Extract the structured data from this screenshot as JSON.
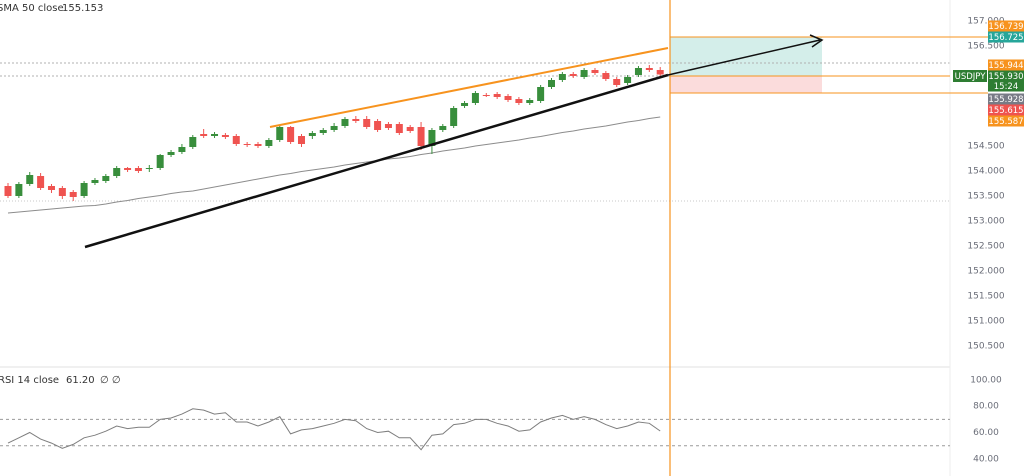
{
  "chart_data": [
    {
      "type": "candlestick",
      "open": [
        153.7,
        153.5,
        153.74,
        153.9,
        153.7,
        153.66,
        153.58,
        153.5,
        153.76,
        153.8,
        153.9,
        154.06,
        154.06,
        154.04,
        154.06,
        154.32,
        154.38,
        154.48,
        154.74,
        154.7,
        154.72,
        154.7,
        154.54,
        154.54,
        154.5,
        154.62,
        154.88,
        154.7,
        154.7,
        154.76,
        154.82,
        154.9,
        155.04,
        155.04,
        155.0,
        154.94,
        154.94,
        154.88,
        154.88,
        154.5,
        154.82,
        154.9,
        155.3,
        155.36,
        155.52,
        155.54,
        155.5,
        155.44,
        155.36,
        155.4,
        155.68,
        155.82,
        155.94,
        155.88,
        156.02,
        155.96,
        155.84,
        155.76,
        155.92,
        156.06,
        156.02
      ],
      "high": [
        153.76,
        153.78,
        153.98,
        153.96,
        153.74,
        153.7,
        153.62,
        153.8,
        153.86,
        153.94,
        154.1,
        154.08,
        154.1,
        154.12,
        154.34,
        154.42,
        154.54,
        154.72,
        154.84,
        154.78,
        154.76,
        154.74,
        154.58,
        154.58,
        154.66,
        154.92,
        154.9,
        154.74,
        154.8,
        154.86,
        154.96,
        155.08,
        155.1,
        155.1,
        155.04,
        154.98,
        154.98,
        154.92,
        154.98,
        154.86,
        154.94,
        155.3,
        155.4,
        155.6,
        155.56,
        155.58,
        155.54,
        155.48,
        155.46,
        155.72,
        155.86,
        155.98,
        155.98,
        156.06,
        156.06,
        156.0,
        155.88,
        155.92,
        156.1,
        156.12,
        156.08
      ],
      "low": [
        153.46,
        153.46,
        153.7,
        153.62,
        153.56,
        153.44,
        153.4,
        153.46,
        153.72,
        153.76,
        153.86,
        153.98,
        153.96,
        153.98,
        154.02,
        154.28,
        154.34,
        154.44,
        154.66,
        154.66,
        154.64,
        154.5,
        154.48,
        154.46,
        154.46,
        154.58,
        154.54,
        154.48,
        154.64,
        154.72,
        154.78,
        154.86,
        154.96,
        154.84,
        154.78,
        154.82,
        154.72,
        154.76,
        154.42,
        154.34,
        154.78,
        154.86,
        155.26,
        155.32,
        155.48,
        155.44,
        155.38,
        155.32,
        155.32,
        155.36,
        155.64,
        155.78,
        155.86,
        155.84,
        155.92,
        155.8,
        155.68,
        155.72,
        155.88,
        155.98,
        155.86
      ],
      "close": [
        153.5,
        153.74,
        153.92,
        153.66,
        153.62,
        153.5,
        153.48,
        153.76,
        153.82,
        153.9,
        154.06,
        154.02,
        154.0,
        154.06,
        154.32,
        154.38,
        154.48,
        154.68,
        154.7,
        154.74,
        154.68,
        154.54,
        154.53,
        154.5,
        154.62,
        154.88,
        154.58,
        154.54,
        154.76,
        154.82,
        154.9,
        155.04,
        155.0,
        154.88,
        154.82,
        154.86,
        154.76,
        154.8,
        154.5,
        154.82,
        154.9,
        155.26,
        155.36,
        155.56,
        155.51,
        155.48,
        155.42,
        155.36,
        155.42,
        155.68,
        155.82,
        155.94,
        155.9,
        156.02,
        155.96,
        155.84,
        155.72,
        155.88,
        156.06,
        156.02,
        155.93
      ],
      "up_color": "#388e3c",
      "down_color": "#ef5350",
      "series": [
        {
          "name": "SMA 50 close",
          "color": "#8c8c8c",
          "values": [
            153.16,
            153.18,
            153.2,
            153.22,
            153.24,
            153.26,
            153.28,
            153.3,
            153.31,
            153.34,
            153.38,
            153.41,
            153.45,
            153.48,
            153.51,
            153.55,
            153.58,
            153.6,
            153.64,
            153.68,
            153.72,
            153.76,
            153.8,
            153.84,
            153.88,
            153.92,
            153.95,
            153.99,
            154.02,
            154.05,
            154.08,
            154.12,
            154.15,
            154.18,
            154.21,
            154.24,
            154.26,
            154.29,
            154.33,
            154.36,
            154.4,
            154.43,
            154.46,
            154.5,
            154.53,
            154.56,
            154.59,
            154.62,
            154.66,
            154.69,
            154.73,
            154.77,
            154.8,
            154.84,
            154.87,
            154.9,
            154.94,
            154.98,
            155.01,
            155.05,
            155.08
          ]
        }
      ],
      "readout": 155.153,
      "ylim": [
        150.12,
        157.42
      ],
      "yticks": [
        {
          "value": 150.5,
          "label": "150.500"
        },
        {
          "value": 151,
          "label": "151.000"
        },
        {
          "value": 151.5,
          "label": "151.500"
        },
        {
          "value": 152,
          "label": "152.000"
        },
        {
          "value": 152.5,
          "label": "152.500"
        },
        {
          "value": 153,
          "label": "153.000"
        },
        {
          "value": 153.5,
          "label": "153.500"
        },
        {
          "value": 154,
          "label": "154.000"
        },
        {
          "value": 154.5,
          "label": "154.500"
        },
        {
          "value": 156.5,
          "label": "156.500"
        },
        {
          "value": 157,
          "label": "157.000"
        }
      ],
      "price_tags": [
        {
          "label": "156.739",
          "color": "#f7931e"
        },
        {
          "label": "156.725",
          "color": "#26a69a"
        },
        {
          "label": "155.944",
          "color": "#f7931e"
        },
        {
          "label": "155.930",
          "color": "#2e7d32"
        },
        {
          "label": "15:24",
          "color": "#2e7d32"
        },
        {
          "label": "155.928",
          "color": "#787b86"
        },
        {
          "label": "155.615",
          "color": "#ef5350"
        },
        {
          "label": "155.587",
          "color": "#f7931e"
        }
      ],
      "symbol": "USDJPY"
    },
    {
      "type": "line",
      "series": [
        {
          "name": "RSI 14 close",
          "color": "#7e7e7e",
          "values": [
            52,
            56,
            60,
            55,
            52,
            48,
            51,
            56,
            58,
            61,
            65,
            63,
            64,
            64,
            70,
            71,
            74,
            78,
            77,
            74,
            75,
            68,
            68,
            65,
            68,
            72,
            59,
            62,
            63,
            65,
            67,
            70,
            69,
            63,
            60,
            61,
            56,
            56,
            47,
            58,
            59,
            66,
            67,
            70,
            70,
            67,
            65,
            61,
            62,
            68,
            71,
            73,
            70,
            72,
            70,
            66,
            63,
            65,
            68,
            67,
            61.2
          ]
        }
      ],
      "readout": {
        "value": 61.2,
        "label": "61.20"
      },
      "flags": "∅ ∅",
      "levels": [
        70,
        50
      ],
      "ylim": [
        27,
        109
      ],
      "yticks": [
        {
          "value": 40,
          "label": "40.00"
        },
        {
          "value": 60,
          "label": "60.00"
        },
        {
          "value": 80,
          "label": "80.00"
        },
        {
          "value": 100,
          "label": "100.00"
        }
      ]
    }
  ]
}
